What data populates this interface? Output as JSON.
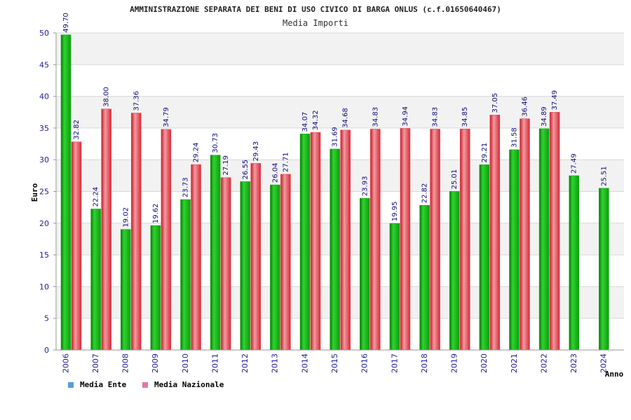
{
  "colors": {
    "ente_bar": "#11aa11",
    "nazionale_bar": "#e03a46",
    "legend_ente": "#5b9bd5",
    "legend_nazionale": "#e377a8",
    "band": "#f2f2f2",
    "grid": "#d8d8d8",
    "tick_text": "#1b1b9a"
  },
  "chart_data": {
    "type": "bar",
    "title": "AMMINISTRAZIONE SEPARATA DEI BENI DI USO CIVICO DI BARGA ONLUS (c.f.01650640467)",
    "subtitle": "Media Importi",
    "xlabel": "Anno",
    "ylabel": "Euro",
    "ylim": [
      0,
      50
    ],
    "yticks": [
      0,
      5,
      10,
      15,
      20,
      25,
      30,
      35,
      40,
      45,
      50
    ],
    "grid": true,
    "legend_position": "bottom-left",
    "categories": [
      "2006",
      "2007",
      "2008",
      "2009",
      "2010",
      "2011",
      "2012",
      "2013",
      "2014",
      "2015",
      "2016",
      "2017",
      "2018",
      "2019",
      "2020",
      "2021",
      "2022",
      "2023",
      "2024"
    ],
    "series": [
      {
        "name": "Media Ente",
        "labels": [
          "49.70",
          "22.24",
          "19.02",
          "19.62",
          "23.73",
          "30.73",
          "26.55",
          "26.04",
          "34.07",
          "31.69",
          "23.93",
          "19.95",
          "22.82",
          "25.01",
          "29.21",
          "31.58",
          "34.89",
          "27.49",
          "25.51"
        ],
        "values": [
          49.7,
          22.24,
          19.02,
          19.62,
          23.73,
          30.73,
          26.55,
          26.04,
          34.07,
          31.69,
          23.93,
          19.95,
          22.82,
          25.01,
          29.21,
          31.58,
          34.89,
          27.49,
          25.51
        ]
      },
      {
        "name": "Media Nazionale",
        "labels": [
          "32.82",
          "38.00",
          "37.36",
          "34.79",
          "29.24",
          "27.19",
          "29.43",
          "27.71",
          "34.32",
          "34.68",
          "34.83",
          "34.94",
          "34.83",
          "34.85",
          "37.05",
          "36.46",
          "37.49",
          null,
          null
        ],
        "values": [
          32.82,
          38.0,
          37.36,
          34.79,
          29.24,
          27.19,
          29.43,
          27.71,
          34.32,
          34.68,
          34.83,
          34.94,
          34.83,
          34.85,
          37.05,
          36.46,
          37.49,
          null,
          null
        ]
      }
    ]
  }
}
